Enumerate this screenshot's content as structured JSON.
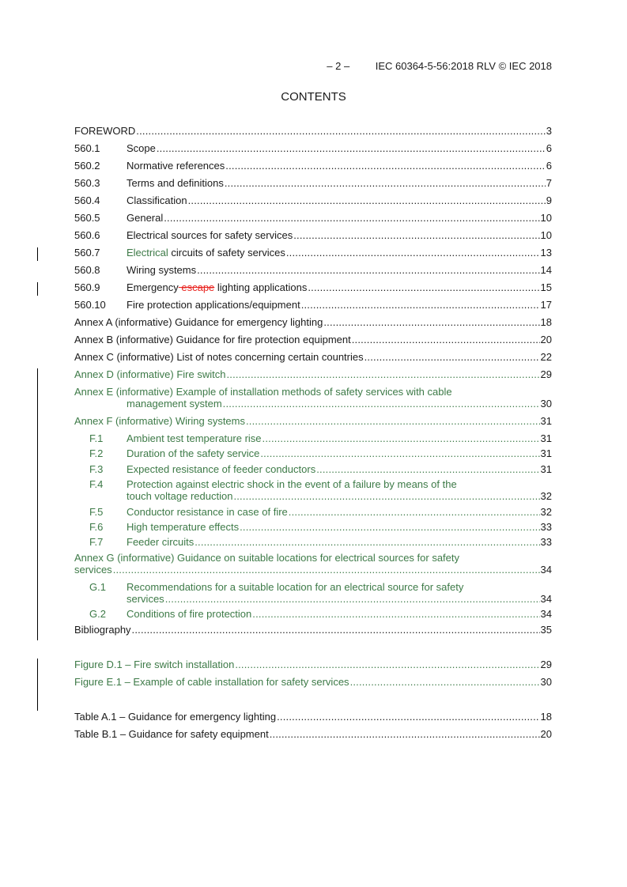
{
  "header": {
    "page": "– 2 –",
    "doc": "IEC 60364-5-56:2018 RLV © IEC 2018"
  },
  "title": "CONTENTS",
  "colors": {
    "inserted": "#3d7a47",
    "deleted": "#e8231f",
    "text": "#1a1a1a"
  },
  "entries": [
    {
      "num": "",
      "segs": [
        {
          "t": "FOREWORD"
        }
      ],
      "page": "3"
    },
    {
      "num": "560.1",
      "segs": [
        {
          "t": "Scope "
        }
      ],
      "page": "6"
    },
    {
      "num": "560.2",
      "segs": [
        {
          "t": "Normative references"
        }
      ],
      "page": "6"
    },
    {
      "num": "560.3",
      "segs": [
        {
          "t": "Terms and definitions"
        }
      ],
      "page": "7"
    },
    {
      "num": "560.4",
      "segs": [
        {
          "t": "Classification "
        }
      ],
      "page": "9"
    },
    {
      "num": "560.5",
      "segs": [
        {
          "t": "General"
        }
      ],
      "page": "10"
    },
    {
      "num": "560.6",
      "segs": [
        {
          "t": "Electrical sources for safety services "
        }
      ],
      "page": "10"
    },
    {
      "num": "560.7",
      "segs": [
        {
          "t": "Electrical",
          "s": "ins"
        },
        {
          "t": " circuits of safety services"
        }
      ],
      "page": "13"
    },
    {
      "num": "560.8",
      "segs": [
        {
          "t": "Wiring systems "
        }
      ],
      "page": "14"
    },
    {
      "num": "560.9",
      "segs": [
        {
          "t": "Emergency"
        },
        {
          "t": " escape",
          "s": "del"
        },
        {
          "t": " lighting applications"
        }
      ],
      "page": "15"
    },
    {
      "num": "560.10",
      "segs": [
        {
          "t": "Fire protection applications/equipment "
        }
      ],
      "page": "17"
    },
    {
      "num": "",
      "segs": [
        {
          "t": "Annex A (informative)  Guidance for emergency lighting "
        }
      ],
      "page": "18"
    },
    {
      "num": "",
      "segs": [
        {
          "t": "Annex B (informative)  Guidance for fire protection equipment "
        }
      ],
      "page": "20"
    },
    {
      "num": "",
      "segs": [
        {
          "t": "Annex C (informative)  List of notes concerning certain countries "
        }
      ],
      "page": "22"
    },
    {
      "num": "",
      "green": true,
      "segs": [
        {
          "t": "Annex D (informative)  Fire switch "
        }
      ],
      "page": "29"
    },
    {
      "num": "",
      "green": true,
      "segs": [
        {
          "t": "Annex E (informative)  Example of installation methods of safety services with cable"
        }
      ],
      "cont": "management system",
      "page": "30"
    },
    {
      "num": "",
      "green": true,
      "segs": [
        {
          "t": "Annex F (informative)  Wiring systems "
        }
      ],
      "page": "31"
    },
    {
      "num": "F.1",
      "sub": true,
      "green": true,
      "segs": [
        {
          "t": "Ambient test temperature rise "
        }
      ],
      "page": "31"
    },
    {
      "num": "F.2",
      "sub": true,
      "green": true,
      "segs": [
        {
          "t": "Duration of the safety service"
        }
      ],
      "page": "31"
    },
    {
      "num": "F.3",
      "sub": true,
      "green": true,
      "segs": [
        {
          "t": "Expected resistance of feeder conductors "
        }
      ],
      "page": "31"
    },
    {
      "num": "F.4",
      "sub": true,
      "green": true,
      "segs": [
        {
          "t": "Protection against electric shock in the event of a failure by means of the"
        }
      ],
      "cont": "touch voltage reduction",
      "page": "32"
    },
    {
      "num": "F.5",
      "sub": true,
      "green": true,
      "segs": [
        {
          "t": "Conductor resistance in case of fire "
        }
      ],
      "page": "32"
    },
    {
      "num": "F.6",
      "sub": true,
      "green": true,
      "segs": [
        {
          "t": "High temperature effects"
        }
      ],
      "page": "33"
    },
    {
      "num": "F.7",
      "sub": true,
      "green": true,
      "segs": [
        {
          "t": "Feeder circuits "
        }
      ],
      "page": "33"
    },
    {
      "num": "",
      "green": true,
      "segs": [
        {
          "t": "Annex G (informative)  Guidance on suitable locations for electrical sources for safety"
        }
      ],
      "cont": "services",
      "contLeft": true,
      "page": "34"
    },
    {
      "num": "G.1",
      "sub": true,
      "green": true,
      "segs": [
        {
          "t": "Recommendations for a suitable location for an electrical source for safety"
        }
      ],
      "cont": "services ",
      "page": "34"
    },
    {
      "num": "G.2",
      "sub": true,
      "green": true,
      "segs": [
        {
          "t": "Conditions of fire protection "
        }
      ],
      "page": "34"
    },
    {
      "num": "",
      "segs": [
        {
          "t": " Bibliography"
        }
      ],
      "page": "35"
    },
    {
      "num": "",
      "green": true,
      "segs": [
        {
          "t": "Figure D.1 – Fire switch installation "
        }
      ],
      "page": "29"
    },
    {
      "num": "",
      "green": true,
      "segs": [
        {
          "t": "Figure E.1 – Example of cable installation for safety services "
        }
      ],
      "page": "30"
    },
    {
      "num": "",
      "segs": [
        {
          "t": "Table A.1 – Guidance for emergency lighting"
        }
      ],
      "page": "18"
    },
    {
      "num": "",
      "segs": [
        {
          "t": "Table B.1 – Guidance for safety equipment"
        }
      ],
      "page": "20"
    }
  ]
}
